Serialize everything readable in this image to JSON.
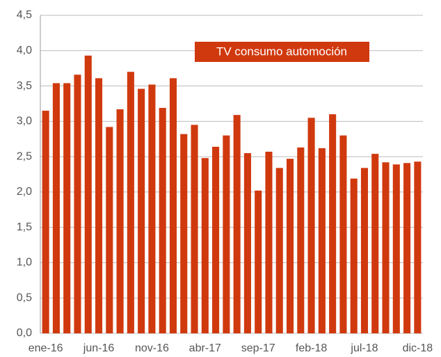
{
  "chart_data": {
    "type": "bar",
    "title": "TV consumo automoción",
    "categories": [
      "ene-16",
      null,
      null,
      null,
      null,
      "jun-16",
      null,
      null,
      null,
      null,
      "nov-16",
      null,
      null,
      null,
      null,
      "abr-17",
      null,
      null,
      null,
      null,
      "sep-17",
      null,
      null,
      null,
      null,
      "feb-18",
      null,
      null,
      null,
      null,
      "jul-18",
      null,
      null,
      null,
      null,
      "dic-18"
    ],
    "values": [
      3.15,
      3.54,
      3.54,
      3.66,
      3.93,
      3.61,
      2.92,
      3.17,
      3.7,
      3.46,
      3.52,
      3.19,
      3.61,
      2.82,
      2.95,
      2.48,
      2.64,
      2.8,
      3.09,
      2.55,
      2.02,
      2.57,
      2.34,
      2.47,
      2.63,
      3.05,
      2.62,
      3.1,
      2.8,
      2.19,
      2.34,
      2.54,
      2.42,
      2.39,
      2.41,
      2.43
    ],
    "color": "#d0390e",
    "ylim": [
      0,
      4.5
    ],
    "yticks": [
      {
        "value": 0,
        "label": "0,0"
      },
      {
        "value": 0.5,
        "label": "0,5"
      },
      {
        "value": 1,
        "label": "1,0"
      },
      {
        "value": 1.5,
        "label": "1,5"
      },
      {
        "value": 2,
        "label": "2,0"
      },
      {
        "value": 2.5,
        "label": "2,5"
      },
      {
        "value": 3,
        "label": "3,0"
      },
      {
        "value": 3.5,
        "label": "3,5"
      },
      {
        "value": 4,
        "label": "4,0"
      },
      {
        "value": 4.5,
        "label": "4,5"
      }
    ],
    "grid": true
  }
}
